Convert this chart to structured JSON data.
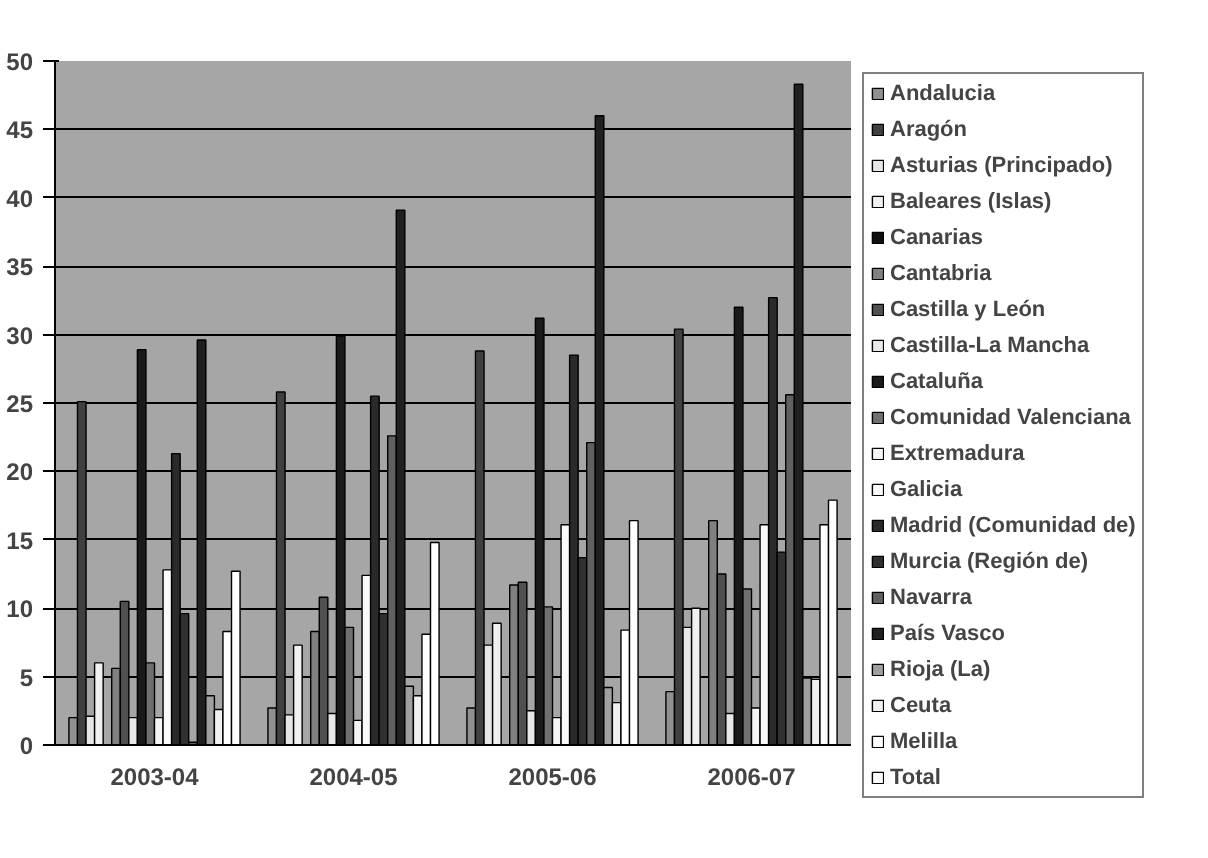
{
  "chart_data": {
    "type": "bar",
    "categories": [
      "2003-04",
      "2004-05",
      "2005-06",
      "2006-07"
    ],
    "ylim": [
      0,
      50
    ],
    "yticks": [
      0,
      5,
      10,
      15,
      20,
      25,
      30,
      35,
      40,
      45,
      50
    ],
    "grid": "y",
    "legend": "right",
    "series": [
      {
        "name": "Andalucia",
        "color": "#909090",
        "values": [
          2.0,
          2.7,
          2.7,
          3.9
        ]
      },
      {
        "name": "Aragón",
        "color": "#404040",
        "values": [
          25.1,
          25.8,
          28.8,
          30.4
        ]
      },
      {
        "name": "Asturias (Principado)",
        "color": "#e6e6e6",
        "values": [
          2.1,
          2.2,
          7.3,
          8.6
        ]
      },
      {
        "name": "Baleares (Islas)",
        "color": "#f0f0f0",
        "values": [
          6.0,
          7.3,
          8.9,
          10.0
        ]
      },
      {
        "name": "Canarias",
        "color": "#101010",
        "values": [
          null,
          null,
          null,
          null
        ]
      },
      {
        "name": "Cantabria",
        "color": "#808080",
        "values": [
          5.6,
          8.3,
          11.7,
          16.4
        ]
      },
      {
        "name": "Castilla y León",
        "color": "#505050",
        "values": [
          10.5,
          10.8,
          11.9,
          12.5
        ]
      },
      {
        "name": "Castilla-La Mancha",
        "color": "#e8e8e8",
        "values": [
          2.0,
          2.3,
          2.5,
          2.3
        ]
      },
      {
        "name": "Cataluña",
        "color": "#1a1a1a",
        "values": [
          28.9,
          29.9,
          31.2,
          32.0
        ]
      },
      {
        "name": "Comunidad Valenciana",
        "color": "#707070",
        "values": [
          6.0,
          8.6,
          10.1,
          11.4
        ]
      },
      {
        "name": "Extremadura",
        "color": "#f5f5f5",
        "values": [
          2.0,
          1.8,
          2.0,
          2.7
        ]
      },
      {
        "name": "Galicia",
        "color": "#fafafa",
        "values": [
          12.8,
          12.4,
          16.1,
          16.1
        ]
      },
      {
        "name": "Madrid (Comunidad de)",
        "color": "#2a2a2a",
        "values": [
          21.3,
          25.5,
          28.5,
          32.7
        ]
      },
      {
        "name": "Murcia (Región de)",
        "color": "#303030",
        "values": [
          9.6,
          9.6,
          13.7,
          14.1
        ]
      },
      {
        "name": "Navarra",
        "color": "#606060",
        "values": [
          0.2,
          22.6,
          22.1,
          25.6
        ]
      },
      {
        "name": "País Vasco",
        "color": "#202020",
        "values": [
          29.6,
          39.1,
          46.0,
          48.3
        ]
      },
      {
        "name": "Rioja (La)",
        "color": "#a0a0a0",
        "values": [
          3.6,
          4.3,
          4.2,
          4.9
        ]
      },
      {
        "name": "Ceuta",
        "color": "#f0f0f0",
        "values": [
          2.6,
          3.6,
          3.1,
          4.8
        ]
      },
      {
        "name": "Melilla",
        "color": "#ffffff",
        "values": [
          8.3,
          8.1,
          8.4,
          16.1
        ]
      },
      {
        "name": "Total",
        "color": "#ffffff",
        "values": [
          12.7,
          14.8,
          16.4,
          17.9
        ]
      }
    ]
  }
}
